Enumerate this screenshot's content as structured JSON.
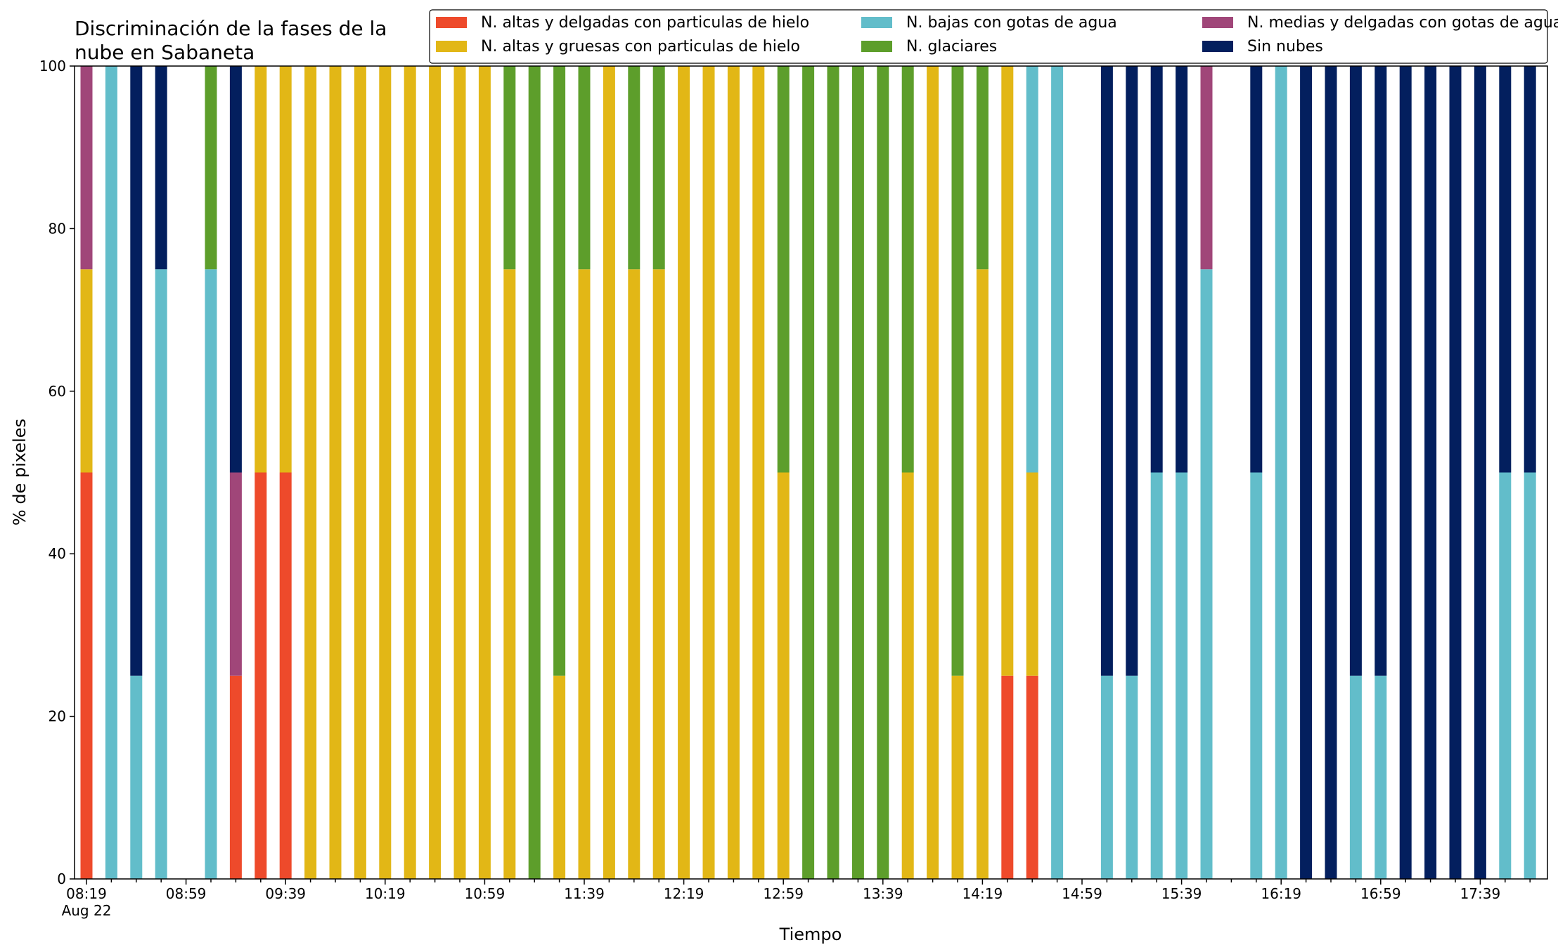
{
  "chart_data": {
    "type": "bar",
    "stacked": true,
    "title": "Discriminación de la fases de la\nnube en Sabaneta",
    "xlabel": "Tiempo",
    "ylabel": "% de pixeles",
    "ylim": [
      0,
      100
    ],
    "yticks": [
      0,
      20,
      40,
      60,
      80,
      100
    ],
    "grid": false,
    "legend_position": "top-right",
    "time_step_minutes": 10,
    "x_time_range": [
      "08:19",
      "18:09"
    ],
    "x_tick_labels": [
      "08:19\nAug 22",
      "08:59",
      "09:39",
      "10:19",
      "10:59",
      "11:39",
      "12:19",
      "12:59",
      "13:39",
      "14:19",
      "14:59",
      "15:39",
      "16:19",
      "16:59",
      "17:39"
    ],
    "categories": [
      "08:19",
      "08:29",
      "08:39",
      "08:49",
      "08:59",
      "09:09",
      "09:19",
      "09:29",
      "09:39",
      "09:49",
      "09:59",
      "10:09",
      "10:19",
      "10:29",
      "10:39",
      "10:49",
      "10:59",
      "11:09",
      "11:19",
      "11:29",
      "11:39",
      "11:49",
      "11:59",
      "12:09",
      "12:19",
      "12:29",
      "12:39",
      "12:49",
      "12:59",
      "13:09",
      "13:19",
      "13:29",
      "13:39",
      "13:49",
      "13:59",
      "14:09",
      "14:19",
      "14:29",
      "14:39",
      "14:49",
      "14:59",
      "15:09",
      "15:19",
      "15:29",
      "15:39",
      "15:49",
      "15:59",
      "16:09",
      "16:19",
      "16:29",
      "16:39",
      "16:49",
      "16:59",
      "17:09",
      "17:19",
      "17:29",
      "17:39",
      "17:49",
      "17:59"
    ],
    "series": [
      {
        "name": "N. altas y delgadas con particulas de hielo",
        "color": "#ee4a2b",
        "values": [
          50,
          0,
          0,
          0,
          0,
          0,
          25,
          50,
          50,
          0,
          0,
          0,
          0,
          0,
          0,
          0,
          0,
          0,
          0,
          0,
          0,
          0,
          0,
          0,
          0,
          0,
          0,
          0,
          0,
          0,
          0,
          0,
          0,
          0,
          0,
          0,
          0,
          25,
          25,
          0,
          0,
          0,
          0,
          0,
          0,
          0,
          0,
          0,
          0,
          0,
          0,
          0,
          0,
          0,
          0,
          0,
          0,
          0,
          0
        ]
      },
      {
        "name": "N. altas y gruesas con particulas de hielo",
        "color": "#e2b716",
        "values": [
          25,
          0,
          0,
          0,
          0,
          0,
          0,
          50,
          50,
          100,
          100,
          100,
          100,
          100,
          100,
          100,
          100,
          75,
          0,
          25,
          75,
          100,
          75,
          75,
          100,
          100,
          100,
          100,
          50,
          0,
          0,
          0,
          0,
          50,
          100,
          25,
          75,
          75,
          25,
          0,
          0,
          0,
          0,
          0,
          0,
          0,
          0,
          0,
          0,
          0,
          0,
          0,
          0,
          0,
          0,
          0,
          0,
          0,
          0
        ]
      },
      {
        "name": "N. bajas con gotas de agua",
        "color": "#62bdca",
        "values": [
          0,
          100,
          25,
          75,
          0,
          75,
          0,
          0,
          0,
          0,
          0,
          0,
          0,
          0,
          0,
          0,
          0,
          0,
          0,
          0,
          0,
          0,
          0,
          0,
          0,
          0,
          0,
          0,
          0,
          0,
          0,
          0,
          0,
          0,
          0,
          0,
          0,
          0,
          50,
          100,
          0,
          25,
          25,
          50,
          50,
          75,
          0,
          50,
          100,
          0,
          0,
          25,
          25,
          0,
          0,
          0,
          0,
          50,
          50
        ]
      },
      {
        "name": "N. glaciares",
        "color": "#5d9e2b",
        "values": [
          0,
          0,
          0,
          0,
          0,
          25,
          0,
          0,
          0,
          0,
          0,
          0,
          0,
          0,
          0,
          0,
          0,
          25,
          100,
          75,
          25,
          0,
          25,
          25,
          0,
          0,
          0,
          0,
          50,
          100,
          100,
          100,
          100,
          50,
          0,
          75,
          25,
          0,
          0,
          0,
          0,
          0,
          0,
          0,
          0,
          0,
          0,
          0,
          0,
          0,
          0,
          0,
          0,
          0,
          0,
          0,
          0,
          0,
          0
        ]
      },
      {
        "name": "N. medias y delgadas con gotas de agua",
        "color": "#a04679",
        "values": [
          25,
          0,
          0,
          0,
          0,
          0,
          25,
          0,
          0,
          0,
          0,
          0,
          0,
          0,
          0,
          0,
          0,
          0,
          0,
          0,
          0,
          0,
          0,
          0,
          0,
          0,
          0,
          0,
          0,
          0,
          0,
          0,
          0,
          0,
          0,
          0,
          0,
          0,
          0,
          0,
          0,
          0,
          0,
          0,
          0,
          25,
          0,
          0,
          0,
          0,
          0,
          0,
          0,
          0,
          0,
          0,
          0,
          0,
          0
        ]
      },
      {
        "name": "Sin nubes",
        "color": "#031f5e",
        "values": [
          0,
          0,
          75,
          25,
          0,
          0,
          50,
          0,
          0,
          0,
          0,
          0,
          0,
          0,
          0,
          0,
          0,
          0,
          0,
          0,
          0,
          0,
          0,
          0,
          0,
          0,
          0,
          0,
          0,
          0,
          0,
          0,
          0,
          0,
          0,
          0,
          0,
          0,
          0,
          0,
          0,
          75,
          75,
          50,
          50,
          0,
          0,
          50,
          0,
          100,
          100,
          75,
          75,
          100,
          100,
          100,
          100,
          50,
          50
        ]
      }
    ]
  }
}
